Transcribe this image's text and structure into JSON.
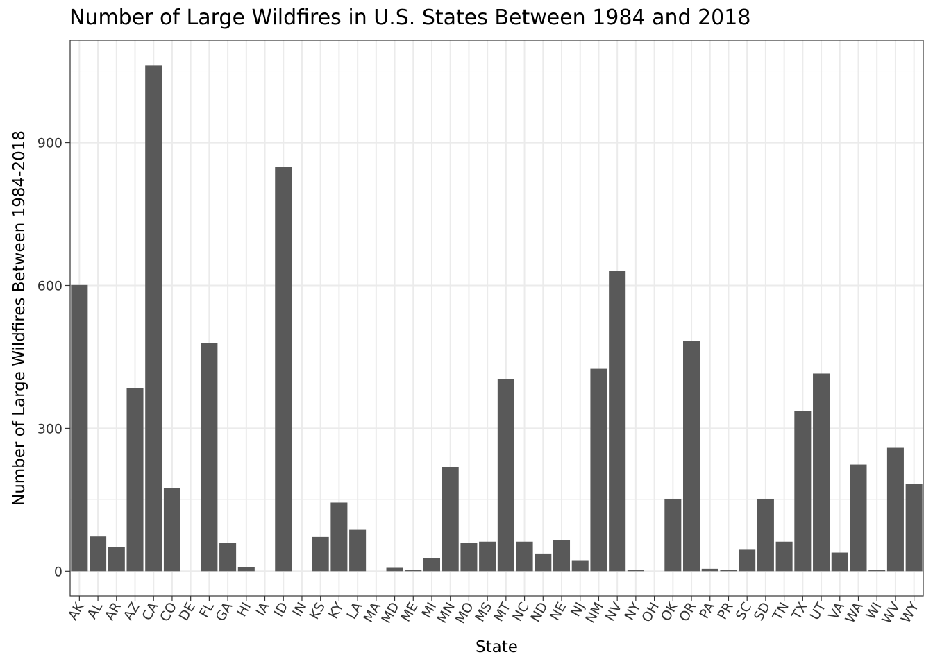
{
  "chart_data": {
    "type": "bar",
    "title": "Number of Large Wildfires in U.S. States Between 1984 and 2018",
    "xlabel": "State",
    "ylabel": "Number of Large Wildfires Between 1984-2018",
    "ylim": [
      -52,
      1115
    ],
    "yticks": [
      0,
      300,
      600,
      900
    ],
    "ytick_labels": [
      "0",
      "300",
      "600",
      "900"
    ],
    "grid": true,
    "categories": [
      "AK",
      "AL",
      "AR",
      "AZ",
      "CA",
      "CO",
      "DE",
      "FL",
      "GA",
      "HI",
      "IA",
      "ID",
      "IN",
      "KS",
      "KY",
      "LA",
      "MA",
      "MD",
      "ME",
      "MI",
      "MN",
      "MO",
      "MS",
      "MT",
      "NC",
      "ND",
      "NE",
      "NJ",
      "NM",
      "NV",
      "NY",
      "OH",
      "OK",
      "OR",
      "PA",
      "PR",
      "SC",
      "SD",
      "TN",
      "TX",
      "UT",
      "VA",
      "WA",
      "WI",
      "WV",
      "WY"
    ],
    "values": [
      601,
      73,
      50,
      385,
      1062,
      174,
      0,
      479,
      59,
      8,
      0,
      849,
      0,
      72,
      144,
      87,
      0,
      7,
      3,
      27,
      219,
      59,
      62,
      403,
      62,
      37,
      65,
      23,
      425,
      631,
      3,
      0,
      152,
      483,
      5,
      2,
      45,
      152,
      62,
      336,
      415,
      39,
      224,
      3,
      259,
      184
    ],
    "colors": {
      "bar": "#595959",
      "panel_border": "#333333",
      "grid": "#ebebeb"
    }
  }
}
